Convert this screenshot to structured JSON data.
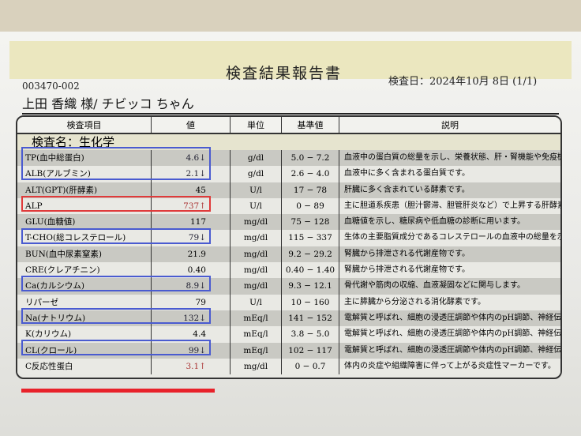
{
  "title": "検査結果報告書",
  "doc_id": "003470-002",
  "exam_date": "検査日：2024年10月 8日 (1/1)",
  "patient": "上田 香織 様/ チビッコ ちゃん",
  "headers": [
    "検査項目",
    "値",
    "単位",
    "基準値",
    "説明"
  ],
  "section": "検査名：生化学",
  "rows": [
    {
      "item": "TP(血中総蛋白)",
      "value": "4.6↓",
      "unit": "g/dl",
      "ref": "5.0 − 7.2",
      "desc": "血液中の蛋白質の総量を示し、栄養状態、肝・腎機能や免疫機能の指標となります。",
      "flag": "low"
    },
    {
      "item": "ALB(アルブミン)",
      "value": "2.1↓",
      "unit": "g/dl",
      "ref": "2.6 − 4.0",
      "desc": "血液中に多く含まれる蛋白質です。",
      "flag": "low"
    },
    {
      "item": "ALT(GPT)(肝酵素)",
      "value": "45",
      "unit": "U/l",
      "ref": "17 − 78",
      "desc": "肝臓に多く含まれている酵素です。",
      "flag": ""
    },
    {
      "item": "ALP",
      "value": "737↑",
      "unit": "U/l",
      "ref": "0 − 89",
      "desc": "主に胆道系疾患（胆汁鬱滞、胆管肝炎など）で上昇する肝酵素です。",
      "flag": "high"
    },
    {
      "item": "GLU(血糖値)",
      "value": "117",
      "unit": "mg/dl",
      "ref": "75 − 128",
      "desc": "血糖値を示し、糖尿病や低血糖の診断に用います。",
      "flag": ""
    },
    {
      "item": "T-CHO(総コレステロール)",
      "value": "79↓",
      "unit": "mg/dl",
      "ref": "115 − 337",
      "desc": "生体の主要脂質成分であるコレステロールの血液中の総量を示します。",
      "flag": "low"
    },
    {
      "item": "BUN(血中尿素窒素)",
      "value": "21.9",
      "unit": "mg/dl",
      "ref": "9.2 − 29.2",
      "desc": "腎臓から排泄される代謝産物です。",
      "flag": ""
    },
    {
      "item": "CRE(クレアチニン)",
      "value": "0.40",
      "unit": "mg/dl",
      "ref": "0.40 − 1.40",
      "desc": "腎臓から排泄される代謝産物です。",
      "flag": ""
    },
    {
      "item": "Ca(カルシウム)",
      "value": "8.9↓",
      "unit": "mg/dl",
      "ref": "9.3 − 12.1",
      "desc": "骨代謝や筋肉の収縮、血液凝固などに関与します。",
      "flag": "low"
    },
    {
      "item": "リパーゼ",
      "value": "79",
      "unit": "U/l",
      "ref": "10 − 160",
      "desc": "主に膵臓から分泌される消化酵素です。",
      "flag": ""
    },
    {
      "item": "Na(ナトリウム)",
      "value": "132↓",
      "unit": "mEq/l",
      "ref": "141 − 152",
      "desc": "電解質と呼ばれ、細胞の浸透圧調節や体内のpH調節、神経伝達など重要な機能を担っています。",
      "flag": "low"
    },
    {
      "item": "K(カリウム)",
      "value": "4.4",
      "unit": "mEq/l",
      "ref": "3.8 − 5.0",
      "desc": "電解質と呼ばれ、細胞の浸透圧調節や体内のpH調節、神経伝達など重要な機能を担っています。",
      "flag": ""
    },
    {
      "item": "CL(クロール)",
      "value": "99↓",
      "unit": "mEq/l",
      "ref": "102 − 117",
      "desc": "電解質と呼ばれ、細胞の浸透圧調節や体内のpH調節、神経伝達など重要な機能を担っています。",
      "flag": "low"
    },
    {
      "item": "C反応性蛋白",
      "value": "3.1↑",
      "unit": "mg/dl",
      "ref": "0 − 0.7",
      "desc": "体内の炎症や組織障害に伴って上がる炎症性マーカーです。",
      "flag": "high"
    }
  ],
  "colors": {
    "blue_box": "#4a5bd0",
    "red_box": "#e03a3a",
    "underline": "#e8222a"
  }
}
